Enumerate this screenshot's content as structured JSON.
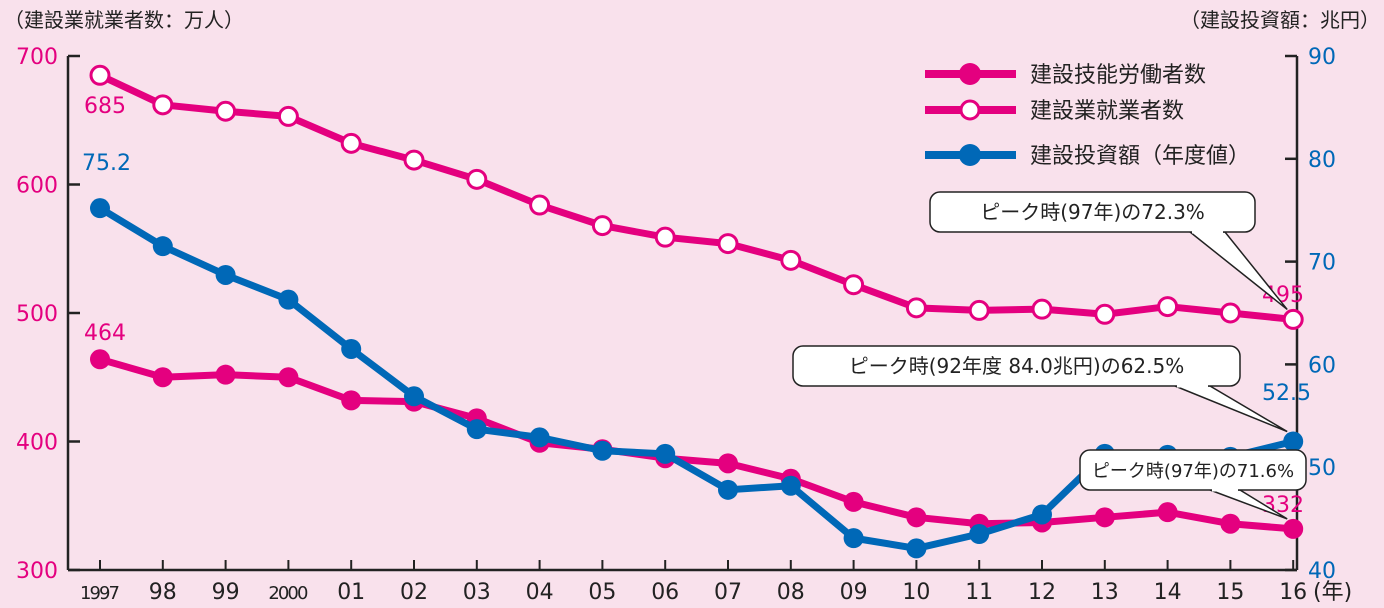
{
  "chart_data": {
    "type": "line",
    "left_axis_title": "（建設業就業者数：万人）",
    "right_axis_title": "（建設投資額：兆円）",
    "x_unit": "(年)",
    "categories": [
      "1997",
      "98",
      "99",
      "2000",
      "01",
      "02",
      "03",
      "04",
      "05",
      "06",
      "07",
      "08",
      "09",
      "10",
      "11",
      "12",
      "13",
      "14",
      "15",
      "16"
    ],
    "y_left": {
      "ylim": [
        300,
        700
      ],
      "ticks": [
        "300",
        "400",
        "500",
        "600",
        "700"
      ]
    },
    "y_right": {
      "ylim": [
        40,
        90
      ],
      "ticks": [
        "40",
        "50",
        "60",
        "70",
        "80",
        "90"
      ]
    },
    "series": [
      {
        "name": "建設技能労働者数",
        "axis": "left",
        "marker": "filled",
        "color": "#e4007f",
        "values": [
          464,
          450,
          452,
          450,
          432,
          431,
          418,
          399,
          394,
          387,
          383,
          371,
          353,
          341,
          336,
          337,
          341,
          345,
          336,
          332
        ]
      },
      {
        "name": "建設業就業者数",
        "axis": "left",
        "marker": "open",
        "color": "#e4007f",
        "values": [
          685,
          662,
          657,
          653,
          632,
          619,
          604,
          584,
          568,
          559,
          554,
          541,
          522,
          504,
          502,
          503,
          499,
          505,
          500,
          495
        ]
      },
      {
        "name": "建設投資額（年度値）",
        "axis": "right",
        "marker": "filled",
        "color": "#0068b7",
        "values": [
          75.2,
          71.5,
          68.7,
          66.3,
          61.5,
          56.9,
          53.7,
          52.9,
          51.6,
          51.3,
          47.8,
          48.2,
          43.1,
          42.1,
          43.5,
          45.4,
          51.3,
          51.2,
          51.0,
          52.5
        ]
      }
    ],
    "data_labels": [
      {
        "text": "685",
        "series": 1,
        "point": 0,
        "color": "#e4007f"
      },
      {
        "text": "464",
        "series": 0,
        "point": 0,
        "color": "#e4007f"
      },
      {
        "text": "75.2",
        "series": 2,
        "point": 0,
        "color": "#0068b7"
      },
      {
        "text": "495",
        "series": 1,
        "point": 19,
        "color": "#e4007f"
      },
      {
        "text": "52.5",
        "series": 2,
        "point": 19,
        "color": "#0068b7"
      },
      {
        "text": "332",
        "series": 0,
        "point": 19,
        "color": "#e4007f"
      }
    ],
    "callouts": [
      {
        "text": "ピーク時(97年)の72.3%",
        "series": 1,
        "point": 19
      },
      {
        "text": "ピーク時(92年度 84.0兆円)の62.5%",
        "series": 2,
        "point": 19
      },
      {
        "text": "ピーク時(97年)の71.6%",
        "series": 0,
        "point": 19
      }
    ],
    "legend_position": "top-right"
  }
}
